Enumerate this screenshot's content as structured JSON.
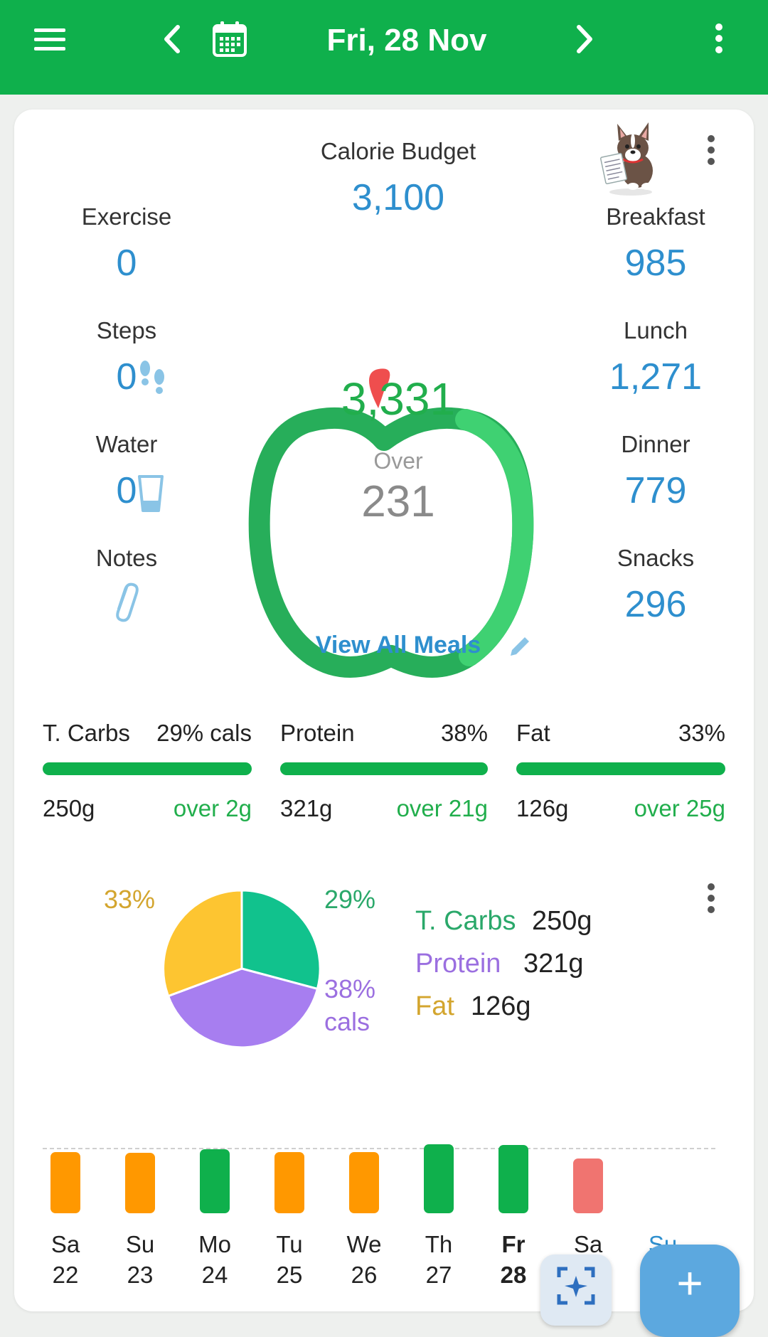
{
  "header": {
    "title": "Fri, 28 Nov",
    "icons": [
      "menu-icon",
      "chevron-left-icon",
      "calendar-icon",
      "chevron-right-icon",
      "more-vertical-icon"
    ]
  },
  "summary": {
    "budget_label": "Calorie Budget",
    "budget_value": "3,100",
    "consumed": "3,331",
    "over_label": "Over",
    "over_value": "231",
    "view_all_label": "View All Meals",
    "left": [
      {
        "label": "Exercise",
        "value": "0"
      },
      {
        "label": "Steps",
        "value": "0"
      },
      {
        "label": "Water",
        "value": "0"
      },
      {
        "label": "Notes",
        "value": ""
      }
    ],
    "right": [
      {
        "label": "Breakfast",
        "value": "985"
      },
      {
        "label": "Lunch",
        "value": "1,271"
      },
      {
        "label": "Dinner",
        "value": "779"
      },
      {
        "label": "Snacks",
        "value": "296"
      }
    ]
  },
  "macros": [
    {
      "name": "T. Carbs",
      "pct": "29% cals",
      "grams": "250g",
      "status": "over 2g"
    },
    {
      "name": "Protein",
      "pct": "38%",
      "grams": "321g",
      "status": "over 21g"
    },
    {
      "name": "Fat",
      "pct": "33%",
      "grams": "126g",
      "status": "over 25g"
    }
  ],
  "pie": {
    "labels": {
      "carbs": "29%",
      "protein": "38%",
      "protein_unit": "cals",
      "fat": "33%"
    },
    "legend": [
      {
        "name": "T. Carbs",
        "grams": "250g",
        "color": "#2aa86a"
      },
      {
        "name": "Protein",
        "grams": "321g",
        "color": "#9b6fe0"
      },
      {
        "name": "Fat",
        "grams": "126g",
        "color": "#d3a52e"
      }
    ]
  },
  "colors": {
    "brand_green": "#0fb04c",
    "accent_blue": "#2e8fce",
    "pie_carbs": "#11c28d",
    "pie_protein": "#a77ef0",
    "pie_fat": "#fdc531",
    "over_orange": "#ff9800",
    "under_red": "#f07470"
  },
  "week": {
    "days": [
      {
        "name": "Sa",
        "date": "22",
        "level": 0.86,
        "color": "#ff9800"
      },
      {
        "name": "Su",
        "date": "23",
        "level": 0.85,
        "color": "#ff9800"
      },
      {
        "name": "Mo",
        "date": "24",
        "level": 0.9,
        "color": "#0fb04c"
      },
      {
        "name": "Tu",
        "date": "25",
        "level": 0.86,
        "color": "#ff9800"
      },
      {
        "name": "We",
        "date": "26",
        "level": 0.86,
        "color": "#ff9800"
      },
      {
        "name": "Th",
        "date": "27",
        "level": 0.97,
        "color": "#0fb04c"
      },
      {
        "name": "Fr",
        "date": "28",
        "level": 0.96,
        "color": "#0fb04c"
      },
      {
        "name": "Sa",
        "date": "?",
        "level": 0.77,
        "color": "#f07470"
      },
      {
        "name": "Su",
        "date": "",
        "level": 0,
        "color": "#2e8fce"
      }
    ]
  },
  "fab": {
    "label": "+"
  }
}
